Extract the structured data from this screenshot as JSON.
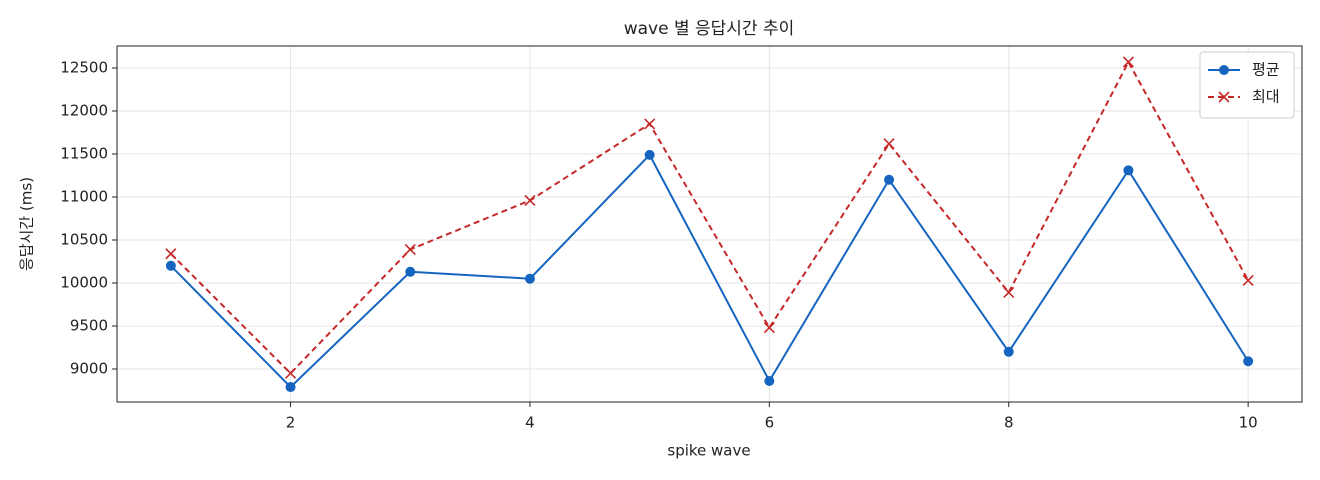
{
  "chart_data": {
    "type": "line",
    "title": "wave 별 응답시간 추이",
    "x_label": "spike wave",
    "y_label": "응답시간 (ms)",
    "x": [
      1,
      2,
      3,
      4,
      5,
      6,
      7,
      8,
      9,
      10
    ],
    "series": [
      {
        "name": "평균",
        "color": "#1565c0",
        "marker": "o",
        "linestyle": "solid",
        "values": [
          10200,
          8790,
          10130,
          10050,
          11490,
          8860,
          11200,
          9200,
          11310,
          9090
        ]
      },
      {
        "name": "최대",
        "color": "#c62828",
        "marker": "x",
        "linestyle": "dashed",
        "values": [
          10340,
          8950,
          10390,
          10960,
          11850,
          9480,
          11620,
          9890,
          12570,
          10030
        ]
      }
    ],
    "xlim": [
      0.55,
      10.45
    ],
    "ylim": [
      8616,
      12756
    ],
    "xticks": [
      2,
      4,
      6,
      8,
      10
    ],
    "yticks": [
      9000,
      9500,
      10000,
      10500,
      11000,
      11500,
      12000,
      12500
    ],
    "grid": true,
    "legend": "upper right"
  }
}
